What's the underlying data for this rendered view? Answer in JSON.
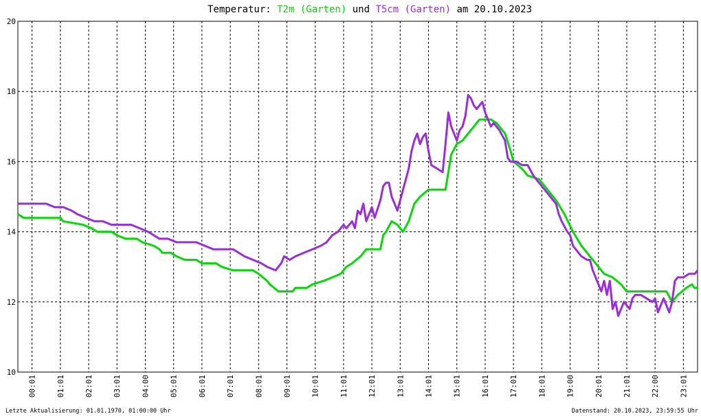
{
  "chart_data": {
    "type": "line",
    "title_parts": [
      {
        "text": "Temperatur: ",
        "color": "#000000"
      },
      {
        "text": "T2m (Garten)",
        "color": "#00dd00"
      },
      {
        "text": " und ",
        "color": "#000000"
      },
      {
        "text": "T5cm (Garten)",
        "color": "#9a2be2"
      },
      {
        "text": " am 20.10.2023",
        "color": "#000000"
      }
    ],
    "x_ticks": [
      "00:01",
      "01:01",
      "02:01",
      "03:01",
      "04:00",
      "05:01",
      "06:01",
      "07:01",
      "08:01",
      "09:01",
      "10:01",
      "11:01",
      "12:01",
      "13:01",
      "14:01",
      "15:01",
      "16:01",
      "17:01",
      "18:01",
      "19:00",
      "20:01",
      "21:01",
      "22:00",
      "23:01"
    ],
    "xlim": [
      0,
      24
    ],
    "ylim": [
      10,
      20
    ],
    "y_ticks": [
      10,
      12,
      14,
      16,
      18,
      20
    ],
    "grid": true,
    "series": [
      {
        "name": "T2m (Garten)",
        "color": "#00dd00",
        "points": [
          [
            0,
            14.5
          ],
          [
            0.2,
            14.4
          ],
          [
            1.5,
            14.4
          ],
          [
            1.6,
            14.3
          ],
          [
            2.3,
            14.2
          ],
          [
            2.6,
            14.1
          ],
          [
            2.8,
            14.0
          ],
          [
            3.3,
            14.0
          ],
          [
            3.5,
            13.9
          ],
          [
            3.8,
            13.8
          ],
          [
            4.2,
            13.8
          ],
          [
            4.4,
            13.7
          ],
          [
            4.8,
            13.6
          ],
          [
            5.0,
            13.5
          ],
          [
            5.1,
            13.4
          ],
          [
            5.4,
            13.4
          ],
          [
            5.6,
            13.3
          ],
          [
            5.9,
            13.2
          ],
          [
            6.3,
            13.2
          ],
          [
            6.5,
            13.1
          ],
          [
            7.0,
            13.1
          ],
          [
            7.2,
            13.0
          ],
          [
            7.6,
            12.9
          ],
          [
            8.3,
            12.9
          ],
          [
            8.5,
            12.8
          ],
          [
            8.8,
            12.6
          ],
          [
            8.9,
            12.5
          ],
          [
            9.2,
            12.3
          ],
          [
            9.7,
            12.3
          ],
          [
            9.8,
            12.4
          ],
          [
            10.2,
            12.4
          ],
          [
            10.4,
            12.5
          ],
          [
            10.8,
            12.6
          ],
          [
            11.1,
            12.7
          ],
          [
            11.4,
            12.8
          ],
          [
            11.6,
            13.0
          ],
          [
            11.8,
            13.1
          ],
          [
            12.1,
            13.3
          ],
          [
            12.3,
            13.5
          ],
          [
            12.8,
            13.5
          ],
          [
            12.9,
            13.9
          ],
          [
            13.0,
            14.0
          ],
          [
            13.2,
            14.3
          ],
          [
            13.4,
            14.2
          ],
          [
            13.6,
            14.0
          ],
          [
            13.8,
            14.3
          ],
          [
            14.0,
            14.8
          ],
          [
            14.2,
            15.0
          ],
          [
            14.5,
            15.2
          ],
          [
            15.1,
            15.2
          ],
          [
            15.2,
            15.7
          ],
          [
            15.3,
            16.2
          ],
          [
            15.5,
            16.5
          ],
          [
            15.7,
            16.6
          ],
          [
            15.9,
            16.8
          ],
          [
            16.1,
            17.0
          ],
          [
            16.3,
            17.2
          ],
          [
            16.7,
            17.2
          ],
          [
            16.9,
            17.1
          ],
          [
            17.2,
            16.8
          ],
          [
            17.4,
            16.3
          ],
          [
            17.5,
            16.0
          ],
          [
            17.8,
            15.8
          ],
          [
            18.0,
            15.6
          ],
          [
            18.4,
            15.5
          ],
          [
            18.6,
            15.3
          ],
          [
            18.8,
            15.1
          ],
          [
            19.0,
            14.9
          ],
          [
            19.3,
            14.5
          ],
          [
            19.6,
            14.0
          ],
          [
            19.9,
            13.6
          ],
          [
            20.2,
            13.3
          ],
          [
            20.5,
            13.0
          ],
          [
            20.7,
            12.8
          ],
          [
            21.0,
            12.7
          ],
          [
            21.3,
            12.5
          ],
          [
            21.5,
            12.3
          ],
          [
            22.9,
            12.3
          ],
          [
            23.1,
            12.0
          ],
          [
            23.3,
            12.2
          ],
          [
            23.6,
            12.4
          ],
          [
            23.8,
            12.5
          ],
          [
            23.9,
            12.4
          ],
          [
            24,
            12.4
          ]
        ]
      },
      {
        "name": "T5cm (Garten)",
        "color": "#9a2be2",
        "points": [
          [
            0,
            14.8
          ],
          [
            0.5,
            14.8
          ],
          [
            1.0,
            14.8
          ],
          [
            1.3,
            14.7
          ],
          [
            1.6,
            14.7
          ],
          [
            1.9,
            14.6
          ],
          [
            2.1,
            14.5
          ],
          [
            2.4,
            14.4
          ],
          [
            2.7,
            14.3
          ],
          [
            3.0,
            14.3
          ],
          [
            3.3,
            14.2
          ],
          [
            3.6,
            14.2
          ],
          [
            4.0,
            14.2
          ],
          [
            4.3,
            14.1
          ],
          [
            4.6,
            14.0
          ],
          [
            4.8,
            13.9
          ],
          [
            5.0,
            13.8
          ],
          [
            5.3,
            13.8
          ],
          [
            5.6,
            13.7
          ],
          [
            6.0,
            13.7
          ],
          [
            6.3,
            13.7
          ],
          [
            6.6,
            13.6
          ],
          [
            6.9,
            13.5
          ],
          [
            7.3,
            13.5
          ],
          [
            7.6,
            13.5
          ],
          [
            8.0,
            13.3
          ],
          [
            8.3,
            13.2
          ],
          [
            8.6,
            13.1
          ],
          [
            8.8,
            13.0
          ],
          [
            9.1,
            12.9
          ],
          [
            9.3,
            13.1
          ],
          [
            9.4,
            13.3
          ],
          [
            9.6,
            13.2
          ],
          [
            9.8,
            13.3
          ],
          [
            10.1,
            13.4
          ],
          [
            10.4,
            13.5
          ],
          [
            10.7,
            13.6
          ],
          [
            10.9,
            13.7
          ],
          [
            11.1,
            13.9
          ],
          [
            11.3,
            14.0
          ],
          [
            11.5,
            14.2
          ],
          [
            11.6,
            14.1
          ],
          [
            11.8,
            14.3
          ],
          [
            11.9,
            14.1
          ],
          [
            12.0,
            14.6
          ],
          [
            12.1,
            14.5
          ],
          [
            12.2,
            14.8
          ],
          [
            12.3,
            14.3
          ],
          [
            12.5,
            14.7
          ],
          [
            12.6,
            14.4
          ],
          [
            12.8,
            14.9
          ],
          [
            12.9,
            15.3
          ],
          [
            13.0,
            15.4
          ],
          [
            13.1,
            15.4
          ],
          [
            13.2,
            15.0
          ],
          [
            13.3,
            14.8
          ],
          [
            13.4,
            14.6
          ],
          [
            13.5,
            14.9
          ],
          [
            13.6,
            15.2
          ],
          [
            13.7,
            15.5
          ],
          [
            13.8,
            15.8
          ],
          [
            13.9,
            16.3
          ],
          [
            14.0,
            16.6
          ],
          [
            14.1,
            16.8
          ],
          [
            14.2,
            16.5
          ],
          [
            14.3,
            16.7
          ],
          [
            14.4,
            16.8
          ],
          [
            14.5,
            16.3
          ],
          [
            14.6,
            15.9
          ],
          [
            14.8,
            15.8
          ],
          [
            15.0,
            15.7
          ],
          [
            15.1,
            16.5
          ],
          [
            15.2,
            17.4
          ],
          [
            15.3,
            17.0
          ],
          [
            15.4,
            16.8
          ],
          [
            15.5,
            16.6
          ],
          [
            15.6,
            16.9
          ],
          [
            15.7,
            17.0
          ],
          [
            15.8,
            17.3
          ],
          [
            15.9,
            17.9
          ],
          [
            16.0,
            17.8
          ],
          [
            16.1,
            17.6
          ],
          [
            16.2,
            17.5
          ],
          [
            16.3,
            17.6
          ],
          [
            16.4,
            17.7
          ],
          [
            16.5,
            17.4
          ],
          [
            16.6,
            17.2
          ],
          [
            16.7,
            17.0
          ],
          [
            16.8,
            17.1
          ],
          [
            17.0,
            16.9
          ],
          [
            17.2,
            16.6
          ],
          [
            17.3,
            16.1
          ],
          [
            17.4,
            16.0
          ],
          [
            17.6,
            16.0
          ],
          [
            17.8,
            15.9
          ],
          [
            18.0,
            15.9
          ],
          [
            18.2,
            15.6
          ],
          [
            18.4,
            15.4
          ],
          [
            18.6,
            15.2
          ],
          [
            18.8,
            15.0
          ],
          [
            19.0,
            14.8
          ],
          [
            19.1,
            14.5
          ],
          [
            19.2,
            14.3
          ],
          [
            19.4,
            14.0
          ],
          [
            19.5,
            13.9
          ],
          [
            19.6,
            13.6
          ],
          [
            19.8,
            13.4
          ],
          [
            19.9,
            13.3
          ],
          [
            20.1,
            13.2
          ],
          [
            20.2,
            13.2
          ],
          [
            20.3,
            12.9
          ],
          [
            20.5,
            12.5
          ],
          [
            20.6,
            12.3
          ],
          [
            20.7,
            12.6
          ],
          [
            20.8,
            12.2
          ],
          [
            20.9,
            12.6
          ],
          [
            21.0,
            11.8
          ],
          [
            21.1,
            12.0
          ],
          [
            21.2,
            11.6
          ],
          [
            21.3,
            11.8
          ],
          [
            21.4,
            12.0
          ],
          [
            21.5,
            11.9
          ],
          [
            21.6,
            11.8
          ],
          [
            21.7,
            12.1
          ],
          [
            21.8,
            12.2
          ],
          [
            22.0,
            12.2
          ],
          [
            22.2,
            12.1
          ],
          [
            22.4,
            12.0
          ],
          [
            22.5,
            12.1
          ],
          [
            22.6,
            11.7
          ],
          [
            22.7,
            11.9
          ],
          [
            22.8,
            12.1
          ],
          [
            22.9,
            11.9
          ],
          [
            23.0,
            11.7
          ],
          [
            23.1,
            12.0
          ],
          [
            23.2,
            12.6
          ],
          [
            23.3,
            12.7
          ],
          [
            23.5,
            12.7
          ],
          [
            23.7,
            12.8
          ],
          [
            23.9,
            12.8
          ],
          [
            24,
            12.9
          ]
        ]
      }
    ]
  },
  "footer": {
    "left": "Letzte Aktualisierung: 01.01.1970, 01:00:00 Uhr",
    "right": "Datenstand: 20.10.2023, 23:59:55 Uhr"
  }
}
